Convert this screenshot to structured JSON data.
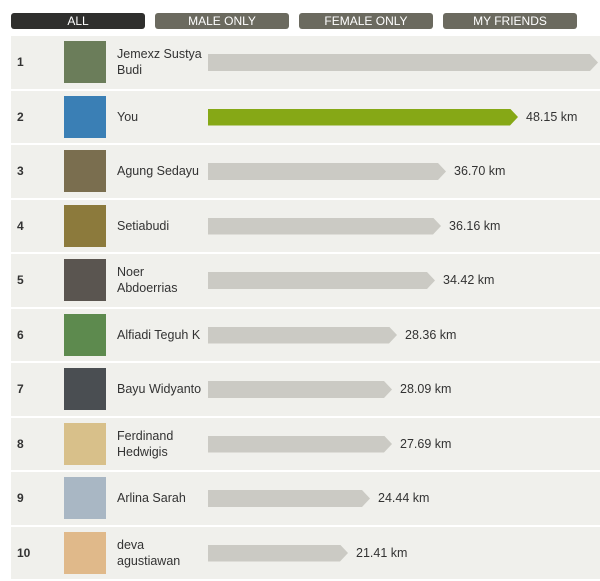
{
  "tabs": [
    {
      "label": "ALL",
      "active": true
    },
    {
      "label": "MALE ONLY"
    },
    {
      "label": "FEMALE ONLY"
    },
    {
      "label": "MY FRIENDS"
    }
  ],
  "colors": {
    "highlight_bar": "#86a816",
    "bar": "#cbcac4",
    "active_tab": "#2f2f2d",
    "tab": "#6b6a5f"
  },
  "rows": [
    {
      "rank": "1",
      "name": "Jemexz Sustya Budi",
      "km": null,
      "distance": "",
      "avatar": "#6b7d5a"
    },
    {
      "rank": "2",
      "name": "You",
      "km": 48.15,
      "distance": "48.15 km",
      "me": true,
      "avatar": "#3a7fb5"
    },
    {
      "rank": "3",
      "name": "Agung Sedayu",
      "km": 36.7,
      "distance": "36.70 km",
      "avatar": "#7a6e4f"
    },
    {
      "rank": "4",
      "name": "Setiabudi",
      "km": 36.16,
      "distance": "36.16 km",
      "avatar": "#8c7a3c"
    },
    {
      "rank": "5",
      "name": "Noer Abdoerrias",
      "km": 34.42,
      "distance": "34.42 km",
      "avatar": "#5a5550"
    },
    {
      "rank": "6",
      "name": "Alfiadi Teguh K",
      "km": 28.36,
      "distance": "28.36 km",
      "avatar": "#5d8a4e"
    },
    {
      "rank": "7",
      "name": "Bayu Widyanto",
      "km": 28.09,
      "distance": "28.09 km",
      "avatar": "#4a4e52"
    },
    {
      "rank": "8",
      "name": "Ferdinand Hedwigis",
      "km": 27.69,
      "distance": "27.69 km",
      "avatar": "#d8c08a"
    },
    {
      "rank": "9",
      "name": "Arlina Sarah",
      "km": 24.44,
      "distance": "24.44 km",
      "avatar": "#a9b7c4"
    },
    {
      "rank": "10",
      "name": "deva agustiawan",
      "km": 21.41,
      "distance": "21.41 km",
      "avatar": "#e0b98a"
    }
  ]
}
